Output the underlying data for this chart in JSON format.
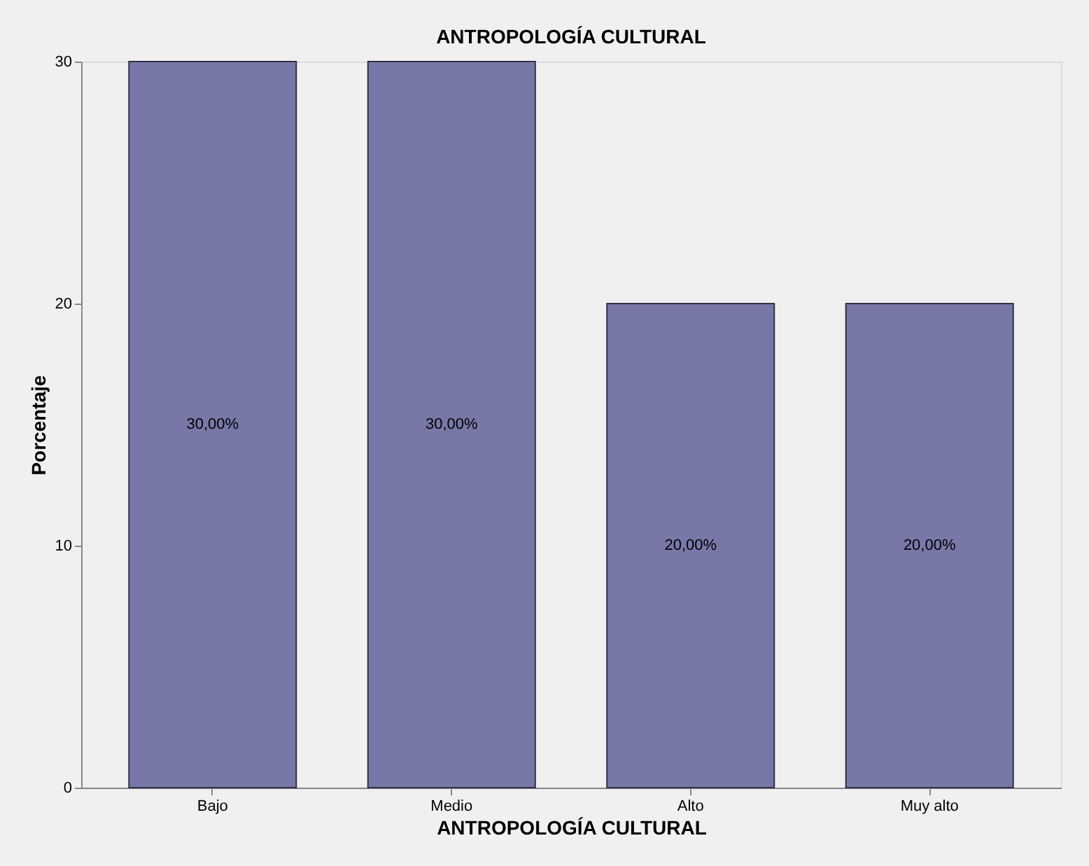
{
  "chart_data": {
    "type": "bar",
    "title": "ANTROPOLOGÍA CULTURAL",
    "xlabel": "ANTROPOLOGÍA CULTURAL",
    "ylabel": "Porcentaje",
    "categories": [
      "Bajo",
      "Medio",
      "Alto",
      "Muy alto"
    ],
    "values": [
      30,
      30,
      20,
      20
    ],
    "value_labels": [
      "30,00%",
      "30,00%",
      "20,00%",
      "20,00%"
    ],
    "color": "#7878a8",
    "ylim": [
      0,
      30
    ],
    "yticks": [
      0,
      10,
      20,
      30
    ],
    "grid": false
  }
}
